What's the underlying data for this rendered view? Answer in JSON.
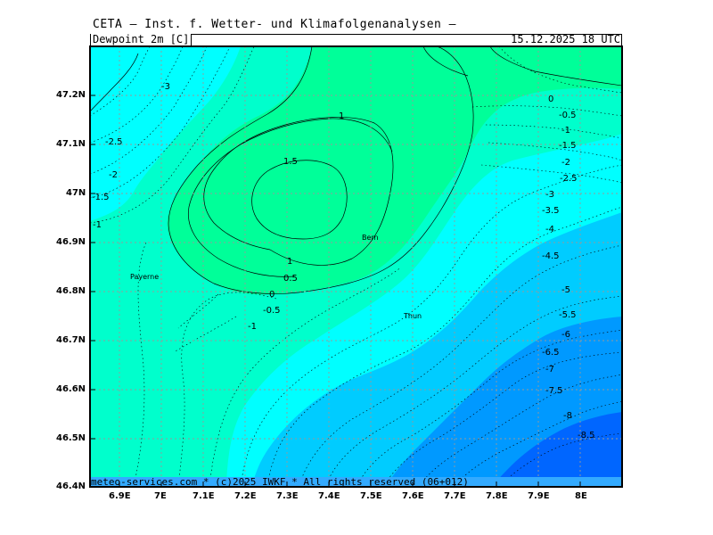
{
  "header": {
    "title": "CETA — Inst. f. Wetter- und Klimafolgenanalysen —",
    "parameter": "Dewpoint 2m [C]",
    "valid_time": "15.12.2025 18 UTC"
  },
  "footer": {
    "copyright": "meteo-services.com * (c)2025 IWKF * All rights reserved (06+012)"
  },
  "axes": {
    "lat_labels": [
      "47.2N",
      "47.1N",
      "47N",
      "46.9N",
      "46.8N",
      "46.7N",
      "46.6N",
      "46.5N",
      "46.4N"
    ],
    "lon_labels": [
      "6.9E",
      "7E",
      "7.1E",
      "7.2E",
      "7.3E",
      "7.4E",
      "7.5E",
      "7.6E",
      "7.7E",
      "7.8E",
      "7.9E",
      "8E"
    ]
  },
  "cities": [
    "Payerne",
    "Bern",
    "Thun"
  ],
  "contour_labels": [
    "-3",
    "-2.5",
    "-2",
    "-1.5",
    "-1",
    "1",
    "1.5",
    "1",
    "0.5",
    "0",
    "-0.5",
    "-1",
    "0",
    "-0.5",
    "-1",
    "-1.5",
    "-2",
    "-2.5",
    "-3",
    "-3.5",
    "-4",
    "-4.5",
    "-5",
    "-5.5",
    "-6",
    "-6.5",
    "-7",
    "-7.5",
    "-8",
    "-8.5"
  ],
  "colors": {
    "band_above_0": "#00ff99",
    "band_0_to_-2": "#00ffcc",
    "band_-2_to_-4": "#00ffff",
    "band_-4_to_-6": "#00ccff",
    "band_-6_to_-8": "#0099ff",
    "band_below_-8": "#0066ff"
  }
}
